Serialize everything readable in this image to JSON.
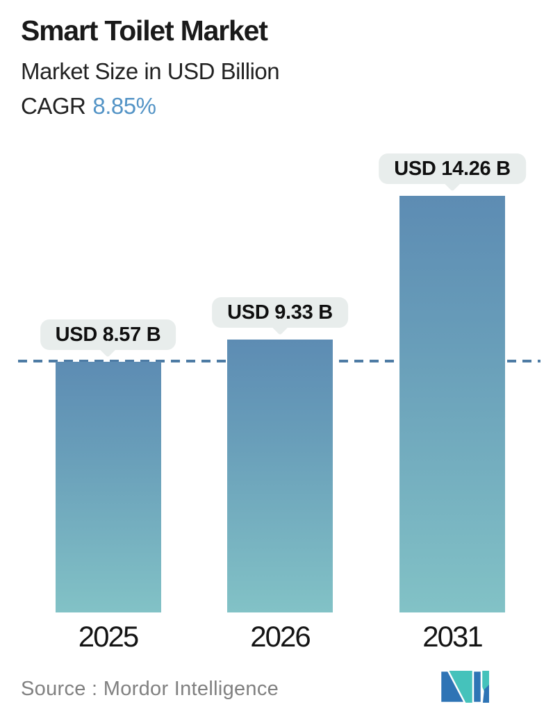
{
  "header": {
    "title": "Smart Toilet Market",
    "subtitle": "Market Size in USD Billion",
    "cagr_label": "CAGR",
    "cagr_value": "8.85%"
  },
  "chart_data": {
    "type": "bar",
    "title": "Smart Toilet Market",
    "ylabel": "Market Size in USD Billion",
    "categories": [
      "2025",
      "2026",
      "2031"
    ],
    "values": [
      8.57,
      9.33,
      14.26
    ],
    "bar_labels": [
      "USD 8.57 B",
      "USD 9.33 B",
      "USD 14.26 B"
    ],
    "cagr_percent": 8.85,
    "ylim": [
      0,
      15.2
    ],
    "grid": false,
    "legend": "none",
    "reference_line": {
      "style": "dashed",
      "value": 8.57,
      "note": "horizontal dashed line at the 2025 market-size level"
    }
  },
  "footer": {
    "source": "Source :  Mordor Intelligence"
  },
  "icons": {
    "logo": "mordor-intelligence-logo"
  },
  "colors": {
    "background": "#ffffff",
    "title_text": "#1a1a1a",
    "accent_blue": "#5494c6",
    "bar_gradient_top": "#5d8cb3",
    "bar_gradient_bottom": "#82c2c6",
    "dashed_line": "#4d7ba4",
    "pill_background": "#e8edec",
    "pill_text": "#0f0f0f",
    "source_text": "#808080",
    "logo_teal": "#45c2bb",
    "logo_blue": "#2e74b5"
  }
}
